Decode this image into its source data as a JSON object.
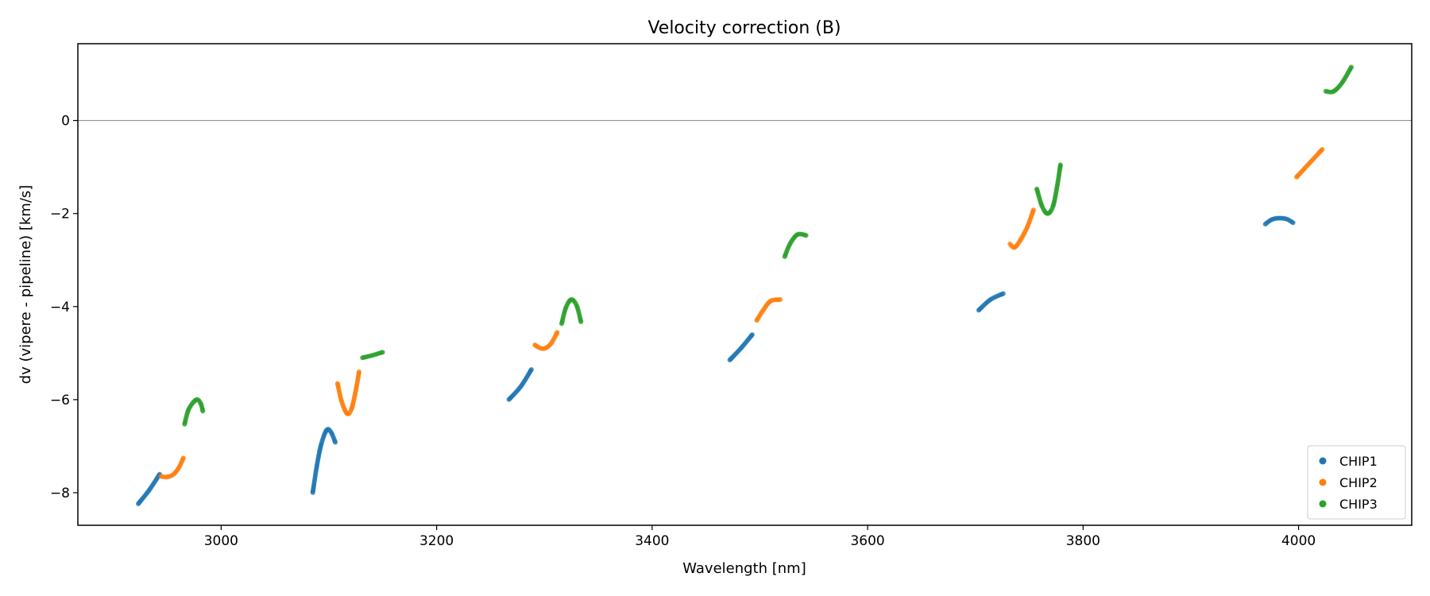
{
  "chart_data": {
    "type": "scatter",
    "title": "Velocity correction (B)",
    "xlabel": "Wavelength [nm]",
    "ylabel": "dv (vipere - pipeline) [km/s]",
    "xlim": [
      2867,
      4105
    ],
    "ylim": [
      -8.7,
      1.65
    ],
    "xticks": [
      3000,
      3200,
      3400,
      3600,
      3800,
      4000
    ],
    "yticks": [
      -8,
      -6,
      -4,
      -2,
      0
    ],
    "xtick_labels": [
      "3000",
      "3200",
      "3400",
      "3600",
      "3800",
      "4000"
    ],
    "ytick_labels": [
      "−8",
      "−6",
      "−4",
      "−2",
      "0"
    ],
    "hline": 0,
    "legend_position": "lower-right",
    "series": [
      {
        "name": "CHIP1",
        "color": "#1f77b4",
        "segments": [
          [
            [
              2923,
              -8.24
            ],
            [
              2933,
              -7.95
            ],
            [
              2943,
              -7.6
            ]
          ],
          [
            [
              3085,
              -8.0
            ],
            [
              3089,
              -7.4
            ],
            [
              3093,
              -6.95
            ],
            [
              3098,
              -6.65
            ],
            [
              3102,
              -6.7
            ],
            [
              3106,
              -6.92
            ]
          ],
          [
            [
              3267,
              -6.0
            ],
            [
              3278,
              -5.72
            ],
            [
              3288,
              -5.35
            ]
          ],
          [
            [
              3472,
              -5.15
            ],
            [
              3483,
              -4.88
            ],
            [
              3493,
              -4.6
            ]
          ],
          [
            [
              3703,
              -4.08
            ],
            [
              3714,
              -3.85
            ],
            [
              3726,
              -3.72
            ]
          ],
          [
            [
              3969,
              -2.23
            ],
            [
              3975,
              -2.13
            ],
            [
              3982,
              -2.1
            ],
            [
              3989,
              -2.12
            ],
            [
              3995,
              -2.2
            ]
          ]
        ]
      },
      {
        "name": "CHIP2",
        "color": "#ff7f0e",
        "segments": [
          [
            [
              2944,
              -7.65
            ],
            [
              2950,
              -7.66
            ],
            [
              2956,
              -7.6
            ],
            [
              2961,
              -7.45
            ],
            [
              2965,
              -7.25
            ]
          ],
          [
            [
              3108,
              -5.65
            ],
            [
              3112,
              -6.05
            ],
            [
              3117,
              -6.3
            ],
            [
              3121,
              -6.2
            ],
            [
              3125,
              -5.8
            ],
            [
              3128,
              -5.4
            ]
          ],
          [
            [
              3291,
              -4.82
            ],
            [
              3295,
              -4.88
            ],
            [
              3300,
              -4.9
            ],
            [
              3306,
              -4.8
            ],
            [
              3312,
              -4.55
            ]
          ],
          [
            [
              3497,
              -4.3
            ],
            [
              3503,
              -4.08
            ],
            [
              3510,
              -3.88
            ],
            [
              3519,
              -3.85
            ]
          ],
          [
            [
              3732,
              -2.65
            ],
            [
              3736,
              -2.73
            ],
            [
              3741,
              -2.6
            ],
            [
              3748,
              -2.3
            ],
            [
              3754,
              -1.92
            ]
          ],
          [
            [
              3998,
              -1.22
            ],
            [
              4010,
              -0.92
            ],
            [
              4022,
              -0.62
            ]
          ]
        ]
      },
      {
        "name": "CHIP3",
        "color": "#2ca02c",
        "segments": [
          [
            [
              2966,
              -6.53
            ],
            [
              2970,
              -6.2
            ],
            [
              2977,
              -6.0
            ],
            [
              2981,
              -6.08
            ],
            [
              2983,
              -6.25
            ]
          ],
          [
            [
              3131,
              -5.1
            ],
            [
              3140,
              -5.05
            ],
            [
              3150,
              -4.98
            ]
          ],
          [
            [
              3316,
              -4.37
            ],
            [
              3320,
              -4.02
            ],
            [
              3325,
              -3.85
            ],
            [
              3330,
              -3.98
            ],
            [
              3334,
              -4.33
            ]
          ],
          [
            [
              3523,
              -2.93
            ],
            [
              3528,
              -2.65
            ],
            [
              3535,
              -2.45
            ],
            [
              3543,
              -2.47
            ]
          ],
          [
            [
              3757,
              -1.47
            ],
            [
              3762,
              -1.85
            ],
            [
              3767,
              -2.0
            ],
            [
              3772,
              -1.85
            ],
            [
              3776,
              -1.4
            ],
            [
              3779,
              -0.95
            ]
          ],
          [
            [
              4025,
              0.63
            ],
            [
              4032,
              0.62
            ],
            [
              4040,
              0.8
            ],
            [
              4049,
              1.15
            ]
          ]
        ]
      }
    ]
  }
}
